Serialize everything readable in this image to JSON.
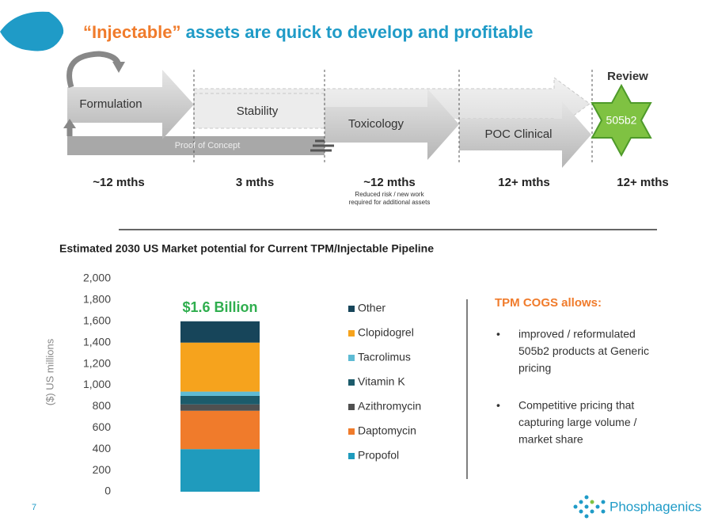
{
  "header": {
    "title_highlight": "“Injectable”",
    "title_rest": " assets are quick to develop and profitable"
  },
  "process": {
    "steps": [
      "Formulation",
      "Stability",
      "Toxicology",
      "POC Clinical"
    ],
    "proof_label": "Proof of Concept",
    "review_label": "Review",
    "badge": "505b2",
    "durations": [
      "~12 mths",
      "3 mths",
      "~12 mths",
      "12+ mths",
      "12+ mths"
    ],
    "note": [
      "Reduced risk / new work",
      "required for additional assets"
    ]
  },
  "chart_data": {
    "type": "stacked_bar",
    "title": "Estimated 2030 US Market potential for Current TPM/Injectable Pipeline",
    "ylabel": "($) US millions",
    "annotation": "$1.6 Billion",
    "categories": [
      null
    ],
    "series": [
      {
        "name": "Propofol",
        "color": "#1f9bbd",
        "values": [
          400
        ]
      },
      {
        "name": "Daptomycin",
        "color": "#f07b2b",
        "values": [
          360
        ]
      },
      {
        "name": "Azithromycin",
        "color": "#505050",
        "values": [
          60
        ]
      },
      {
        "name": "Vitamin K",
        "color": "#1c5b6b",
        "values": [
          80
        ]
      },
      {
        "name": "Tacrolimus",
        "color": "#5ebbd4",
        "values": [
          40
        ]
      },
      {
        "name": "Clopidogrel",
        "color": "#f6a31d",
        "values": [
          460
        ]
      },
      {
        "name": "Other",
        "color": "#17455a",
        "values": [
          200
        ]
      }
    ],
    "ylim": [
      0,
      2000
    ],
    "yticks": [
      0,
      200,
      400,
      600,
      800,
      {
        "value": 1000,
        "label": "1,000"
      },
      {
        "value": 1200,
        "label": "1,200"
      },
      {
        "value": 1400,
        "label": "1,400"
      },
      {
        "value": 1600,
        "label": "1,600"
      },
      {
        "value": 1800,
        "label": "1,800"
      },
      {
        "value": 2000,
        "label": "2,000"
      }
    ],
    "grid": false
  },
  "panel": {
    "heading": "TPM COGS allows:",
    "bullets": [
      [
        "improved / reformulated",
        "505b2 products at Generic",
        "pricing"
      ],
      [
        "Competitive pricing that",
        "capturing large volume /",
        "market share"
      ]
    ]
  },
  "footer": {
    "page": "7",
    "logo": "Phosphagenics"
  }
}
